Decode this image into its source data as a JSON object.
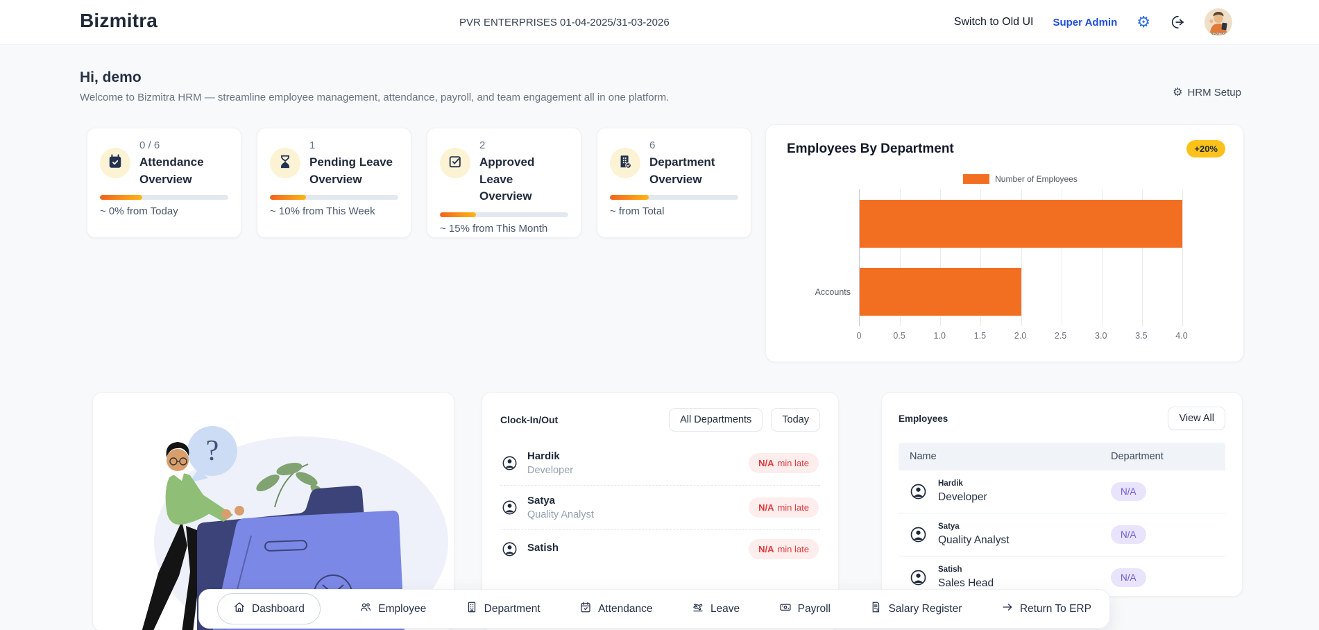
{
  "header": {
    "brand": "Bizmitra",
    "company_period": "PVR ENTERPRISES 01-04-2025/31-03-2026",
    "switch_ui_label": "Switch to Old UI",
    "role_label": "Super Admin"
  },
  "hero": {
    "greeting": "Hi, demo",
    "subtitle": "Welcome to Bizmitra HRM — streamline employee management, attendance, payroll, and team engagement all in one platform.",
    "hrm_setup_label": "HRM Setup"
  },
  "stats": [
    {
      "value": "0 / 6",
      "title": "Attendance Overview",
      "footer": "~ 0% from Today",
      "icon": "calendar-check-icon",
      "progress_pct": 33
    },
    {
      "value": "1",
      "title": "Pending Leave Overview",
      "footer": "~ 10% from This Week",
      "icon": "hourglass-icon",
      "progress_pct": 28
    },
    {
      "value": "2",
      "title": "Approved Leave Overview",
      "footer": "~ 15% from This Month",
      "icon": "clipboard-check-icon",
      "progress_pct": 28
    },
    {
      "value": "6",
      "title": "Department Overview",
      "footer": "~ from Total",
      "icon": "building-check-icon",
      "progress_pct": 30
    }
  ],
  "chart_card": {
    "title": "Employees By Department",
    "badge": "+20%"
  },
  "chart_data": {
    "type": "bar",
    "orientation": "horizontal",
    "title": "Employees By Department",
    "legend": [
      "Number of Employees"
    ],
    "legend_position": "top",
    "categories": [
      "",
      "Accounts"
    ],
    "values": [
      4,
      2
    ],
    "xlim": [
      0,
      4
    ],
    "xticks": [
      "0",
      "0.5",
      "1.0",
      "1.5",
      "2.0",
      "2.5",
      "3.0",
      "3.5",
      "4.0"
    ],
    "grid": "vertical",
    "bar_color": "#f26f21"
  },
  "clock_card": {
    "title": "Clock-In/Out",
    "filter_department": "All Departments",
    "filter_date": "Today",
    "entries": [
      {
        "name": "Hardik",
        "role": "Developer",
        "badge_value": "N/A",
        "badge_suffix": "min late"
      },
      {
        "name": "Satya",
        "role": "Quality Analyst",
        "badge_value": "N/A",
        "badge_suffix": "min late"
      },
      {
        "name": "Satish",
        "role": "",
        "badge_value": "N/A",
        "badge_suffix": "min late"
      }
    ]
  },
  "employees_card": {
    "title": "Employees",
    "view_all_label": "View All",
    "columns": [
      "Name",
      "Department"
    ],
    "rows": [
      {
        "name": "Hardik",
        "role": "Developer",
        "department": "N/A"
      },
      {
        "name": "Satya",
        "role": "Quality Analyst",
        "department": "N/A"
      },
      {
        "name": "Satish",
        "role": "Sales Head",
        "department": "N/A"
      }
    ]
  },
  "bottom_nav": [
    {
      "label": "Dashboard",
      "icon": "home-icon",
      "active": true
    },
    {
      "label": "Employee",
      "icon": "people-icon",
      "active": false
    },
    {
      "label": "Department",
      "icon": "building-icon",
      "active": false
    },
    {
      "label": "Attendance",
      "icon": "calendar-check-icon",
      "active": false
    },
    {
      "label": "Leave",
      "icon": "plane-icon",
      "active": false
    },
    {
      "label": "Payroll",
      "icon": "banknote-icon",
      "active": false
    },
    {
      "label": "Salary Register",
      "icon": "document-dollar-icon",
      "active": false
    },
    {
      "label": "Return To ERP",
      "icon": "arrow-right-icon",
      "active": false
    }
  ],
  "colors": {
    "accent_orange": "#f26f21",
    "badge_yellow": "#fcc21b",
    "badge_red_text": "#e23b3b",
    "badge_purple_text": "#6d5bd0",
    "accent_blue": "#2f6fe4",
    "progress_gradient": [
      "#f4621c",
      "#fdb714"
    ]
  }
}
